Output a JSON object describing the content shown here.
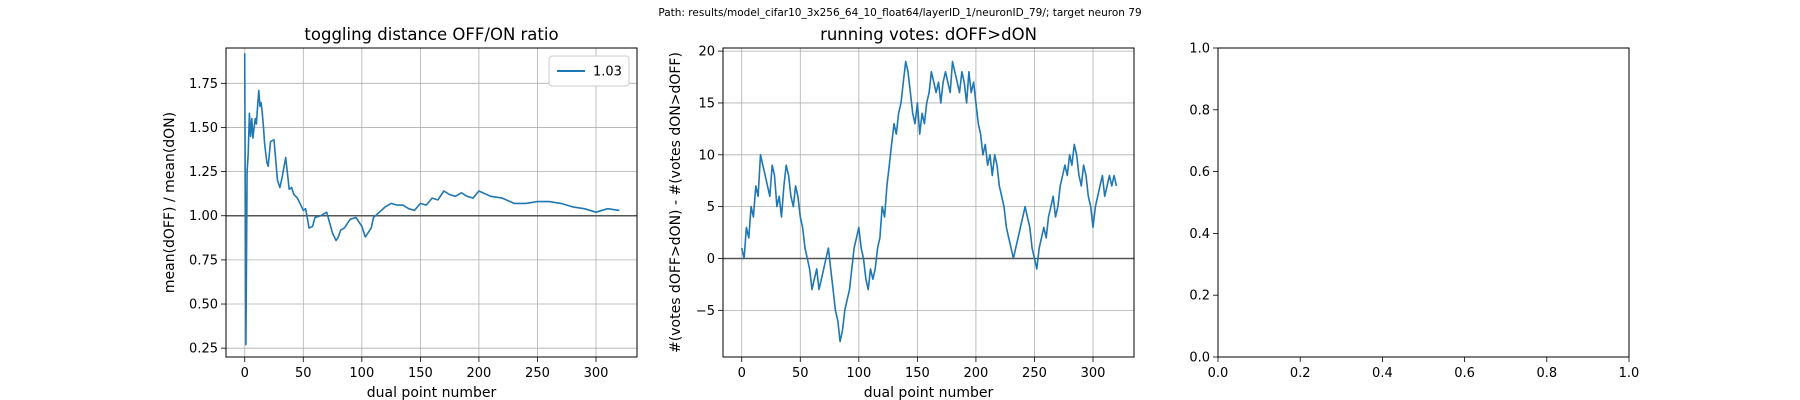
{
  "suptitle": "Path: results/model_cifar10_3x256_64_10_float64/layerID_1/neuronID_79/; target neuron 79",
  "chart_data": [
    {
      "type": "line",
      "title": "toggling distance OFF/ON ratio",
      "xlabel": "dual point number",
      "ylabel": "mean(dOFF) / mean(dON)",
      "xlim": [
        -16,
        335
      ],
      "ylim": [
        0.2,
        1.95
      ],
      "xticks": [
        0,
        50,
        100,
        150,
        200,
        250,
        300
      ],
      "yticks": [
        0.25,
        0.5,
        0.75,
        1.0,
        1.25,
        1.5,
        1.75
      ],
      "ytick_labels": [
        "0.25",
        "0.50",
        "0.75",
        "1.00",
        "1.25",
        "1.50",
        "1.75"
      ],
      "grid": true,
      "hline": 1.0,
      "legend": {
        "placement": "top-right",
        "entries": [
          "1.03"
        ]
      },
      "series": [
        {
          "name": "1.03",
          "color": "#1f77b4",
          "x": [
            0,
            1,
            2,
            3,
            4,
            5,
            6,
            7,
            8,
            9,
            10,
            11,
            12,
            13,
            14,
            15,
            16,
            17,
            18,
            19,
            20,
            22,
            25,
            28,
            30,
            32,
            35,
            38,
            40,
            42,
            45,
            48,
            50,
            52,
            55,
            58,
            60,
            65,
            70,
            75,
            78,
            80,
            82,
            85,
            88,
            90,
            95,
            100,
            103,
            105,
            108,
            110,
            115,
            120,
            125,
            130,
            135,
            140,
            145,
            150,
            155,
            160,
            165,
            170,
            175,
            180,
            185,
            190,
            195,
            200,
            210,
            220,
            230,
            240,
            250,
            260,
            270,
            280,
            290,
            300,
            310,
            320
          ],
          "y": [
            1.92,
            0.27,
            1.25,
            1.35,
            1.58,
            1.45,
            1.55,
            1.44,
            1.5,
            1.55,
            1.52,
            1.62,
            1.71,
            1.62,
            1.64,
            1.58,
            1.5,
            1.41,
            1.35,
            1.3,
            1.28,
            1.42,
            1.43,
            1.2,
            1.16,
            1.22,
            1.33,
            1.15,
            1.16,
            1.12,
            1.1,
            1.06,
            1.03,
            1.04,
            0.93,
            0.94,
            0.99,
            1.0,
            1.02,
            0.9,
            0.86,
            0.88,
            0.92,
            0.93,
            0.96,
            0.98,
            0.99,
            0.94,
            0.88,
            0.9,
            0.93,
            0.99,
            1.02,
            1.05,
            1.07,
            1.06,
            1.06,
            1.04,
            1.03,
            1.07,
            1.06,
            1.1,
            1.09,
            1.14,
            1.12,
            1.11,
            1.13,
            1.11,
            1.1,
            1.14,
            1.11,
            1.1,
            1.07,
            1.07,
            1.08,
            1.08,
            1.07,
            1.05,
            1.04,
            1.02,
            1.04,
            1.03
          ]
        }
      ]
    },
    {
      "type": "line",
      "title": "running votes: dOFF>dON",
      "xlabel": "dual point number",
      "ylabel": "#(votes dOFF>dON) - #(votes dON>dOFF)",
      "xlim": [
        -16,
        335
      ],
      "ylim": [
        -9.5,
        20.3
      ],
      "xticks": [
        0,
        50,
        100,
        150,
        200,
        250,
        300
      ],
      "yticks": [
        -5,
        0,
        5,
        10,
        15,
        20
      ],
      "ytick_labels": [
        "−5",
        "0",
        "5",
        "10",
        "15",
        "20"
      ],
      "grid": true,
      "hline": 0,
      "series": [
        {
          "name": "",
          "color": "#1f77b4",
          "x": [
            0,
            2,
            4,
            6,
            8,
            10,
            12,
            14,
            16,
            18,
            20,
            22,
            24,
            26,
            28,
            30,
            32,
            34,
            36,
            38,
            40,
            42,
            44,
            46,
            48,
            50,
            52,
            54,
            56,
            58,
            60,
            62,
            64,
            66,
            68,
            70,
            72,
            74,
            76,
            78,
            80,
            82,
            84,
            86,
            88,
            90,
            92,
            94,
            96,
            98,
            100,
            102,
            104,
            106,
            108,
            110,
            112,
            114,
            116,
            118,
            120,
            122,
            124,
            126,
            128,
            130,
            132,
            134,
            136,
            138,
            140,
            142,
            144,
            146,
            148,
            150,
            152,
            154,
            156,
            158,
            160,
            162,
            164,
            166,
            168,
            170,
            172,
            174,
            176,
            178,
            180,
            182,
            184,
            186,
            188,
            190,
            192,
            194,
            196,
            198,
            200,
            202,
            204,
            206,
            208,
            210,
            212,
            214,
            216,
            218,
            220,
            222,
            224,
            226,
            228,
            230,
            232,
            234,
            236,
            238,
            240,
            242,
            244,
            246,
            248,
            250,
            252,
            254,
            256,
            258,
            260,
            262,
            264,
            266,
            268,
            270,
            272,
            274,
            276,
            278,
            280,
            282,
            284,
            286,
            288,
            290,
            292,
            294,
            296,
            298,
            300,
            302,
            304,
            306,
            308,
            310,
            312,
            314,
            316,
            318,
            320
          ],
          "y": [
            1,
            0,
            3,
            2,
            5,
            4,
            7,
            6,
            10,
            9,
            8,
            7,
            6,
            9,
            8,
            5,
            6,
            4,
            7,
            9,
            8,
            6,
            5,
            7,
            6,
            4,
            3,
            1,
            0,
            -1,
            -3,
            -2,
            -1,
            -3,
            -2,
            -1,
            0,
            1,
            -1,
            -3,
            -5,
            -6,
            -8,
            -7,
            -5,
            -4,
            -3,
            -1,
            1,
            2,
            3,
            1,
            0,
            -2,
            -3,
            -1,
            -2,
            -1,
            1,
            2,
            5,
            4,
            7,
            9,
            11,
            13,
            12,
            14,
            15,
            17,
            19,
            18,
            16,
            14,
            13,
            15,
            12,
            14,
            13,
            15,
            16,
            18,
            17,
            16,
            17,
            15,
            17,
            18,
            17,
            16,
            19,
            18,
            17,
            16,
            18,
            17,
            15,
            18,
            16,
            17,
            15,
            13,
            12,
            10,
            11,
            9,
            10,
            8,
            10,
            9,
            7,
            6,
            5,
            3,
            2,
            1,
            0,
            1,
            2,
            3,
            4,
            5,
            4,
            3,
            1,
            0,
            -1,
            1,
            2,
            3,
            2,
            4,
            5,
            6,
            4,
            5,
            7,
            8,
            9,
            8,
            10,
            9,
            11,
            10,
            8,
            7,
            9,
            8,
            6,
            5,
            3,
            5,
            6,
            7,
            8,
            6,
            7,
            8,
            7,
            8,
            7
          ]
        }
      ]
    },
    {
      "type": "line",
      "title": "",
      "xlabel": "",
      "ylabel": "",
      "xlim": [
        0,
        1
      ],
      "ylim": [
        0,
        1
      ],
      "xticks": [
        0,
        0.2,
        0.4,
        0.6,
        0.8,
        1.0
      ],
      "xtick_labels": [
        "0.0",
        "0.2",
        "0.4",
        "0.6",
        "0.8",
        "1.0"
      ],
      "yticks": [
        0,
        0.2,
        0.4,
        0.6,
        0.8,
        1.0
      ],
      "ytick_labels": [
        "0.0",
        "0.2",
        "0.4",
        "0.6",
        "0.8",
        "1.0"
      ],
      "grid": false,
      "series": []
    }
  ]
}
